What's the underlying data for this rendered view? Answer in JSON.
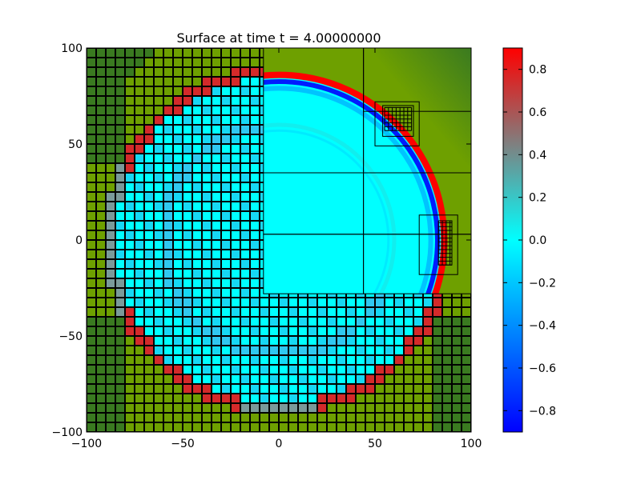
{
  "chart_data": {
    "type": "heatmap",
    "title": "Surface at time t =     4.00000000",
    "xlabel": "",
    "ylabel": "",
    "xlim": [
      -100,
      100
    ],
    "ylim": [
      -100,
      100
    ],
    "x_ticks": [
      "−100",
      "−50",
      "0",
      "50",
      "100"
    ],
    "y_ticks": [
      "100",
      "50",
      "0",
      "−50",
      "−100"
    ],
    "colorbar": {
      "min": -0.9,
      "max": 0.9,
      "ticks": [
        "0.8",
        "0.6",
        "0.4",
        "0.2",
        "0.0",
        "−0.2",
        "−0.4",
        "−0.6",
        "−0.8"
      ],
      "colormap": [
        "#0000ff",
        "#00ffff",
        "#ff0000"
      ]
    },
    "coarse_grid_region": {
      "x": [
        -100,
        100
      ],
      "y": [
        -100,
        100
      ],
      "cell": 5
    },
    "refined_region": {
      "x": [
        -8,
        100
      ],
      "y": [
        -28,
        100
      ]
    },
    "wave_ring": {
      "center": [
        0,
        0
      ],
      "radius_coarse": 88,
      "radius_fine": 86,
      "surface_peak": 0.9
    },
    "inner_arc": {
      "center": [
        0,
        0
      ],
      "radius": 60,
      "surface": 0.1
    },
    "interior_surface": 0.0,
    "dry_land_colors": [
      "#6ea000",
      "#3a7a20"
    ],
    "refinement_patches": [
      {
        "x": [
          -8,
          44
        ],
        "y": [
          35,
          100
        ]
      },
      {
        "x": [
          44,
          100
        ],
        "y": [
          35,
          100
        ]
      },
      {
        "x": [
          -8,
          44
        ],
        "y": [
          3,
          35
        ]
      },
      {
        "x": [
          44,
          100
        ],
        "y": [
          3,
          35
        ]
      },
      {
        "x": [
          -8,
          44
        ],
        "y": [
          -28,
          3
        ]
      },
      {
        "x": [
          44,
          100
        ],
        "y": [
          -28,
          3
        ]
      },
      {
        "x": [
          44,
          100
        ],
        "y": [
          67,
          100
        ]
      },
      {
        "x": [
          50,
          73
        ],
        "y": [
          49,
          72
        ]
      },
      {
        "x": [
          54,
          70
        ],
        "y": [
          54,
          70
        ]
      },
      {
        "x": [
          73,
          93
        ],
        "y": [
          -18,
          13
        ]
      },
      {
        "x": [
          83,
          90
        ],
        "y": [
          -13,
          10
        ]
      }
    ]
  }
}
